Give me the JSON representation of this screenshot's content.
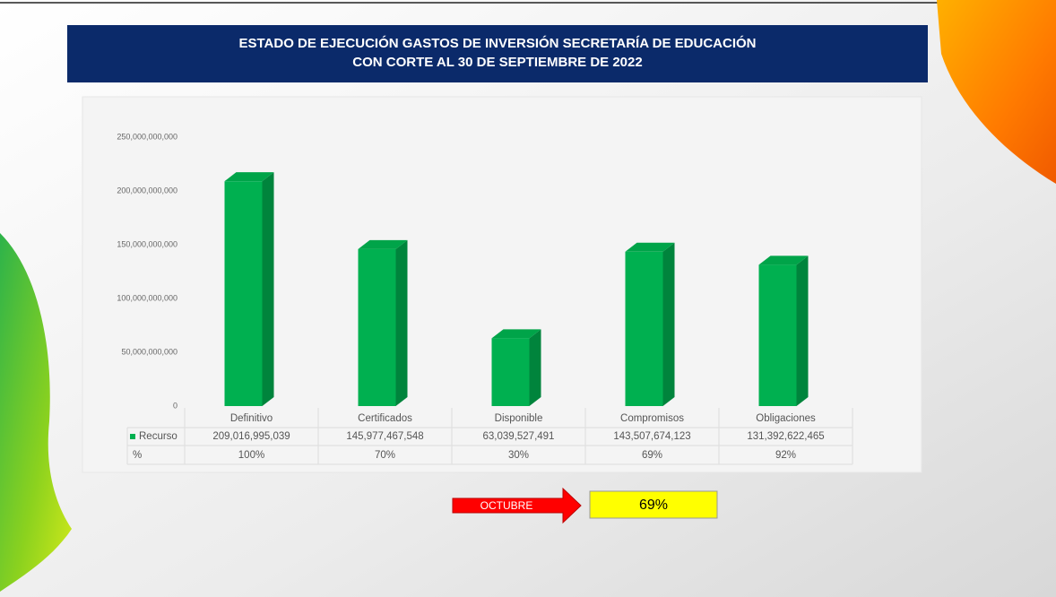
{
  "slide": {
    "title_lines": [
      "ESTADO DE EJECUCIÓN GASTOS DE INVERSIÓN SECRETARÍA DE EDUCACIÓN",
      "CON CORTE AL 30 DE SEPTIEMBRE DE 2022"
    ],
    "arrow_label": "OCTUBRE",
    "highlight": "69%"
  },
  "chart_data": {
    "type": "bar3d",
    "categories": [
      "Definitivo",
      "Certificados",
      "Disponible",
      "Compromisos",
      "Obligaciones"
    ],
    "series": [
      {
        "name": "Recurso",
        "color": "#00b050",
        "values": [
          209016995039,
          145977467548,
          63039527491,
          143507674123,
          131392622465
        ],
        "value_labels": [
          "209,016,995,039",
          "145,977,467,548",
          "63,039,527,491",
          "143,507,674,123",
          "131,392,622,465"
        ]
      }
    ],
    "table_rows": [
      {
        "name": "%",
        "values": [
          100,
          70,
          30,
          69,
          92
        ],
        "value_labels": [
          "100%",
          "70%",
          "30%",
          "69%",
          "92%"
        ]
      }
    ],
    "ylim": [
      0,
      250000000000
    ],
    "yticks": [
      0,
      {
        "value": 50000000000,
        "label": "50,000,000,000"
      },
      {
        "value": 100000000000,
        "label": "100,000,000,000"
      },
      {
        "value": 150000000000,
        "label": "150,000,000,000"
      },
      {
        "value": 200000000000,
        "label": "200,000,000,000"
      },
      {
        "value": 250000000000,
        "label": "250,000,000,000"
      }
    ],
    "grid": false
  }
}
